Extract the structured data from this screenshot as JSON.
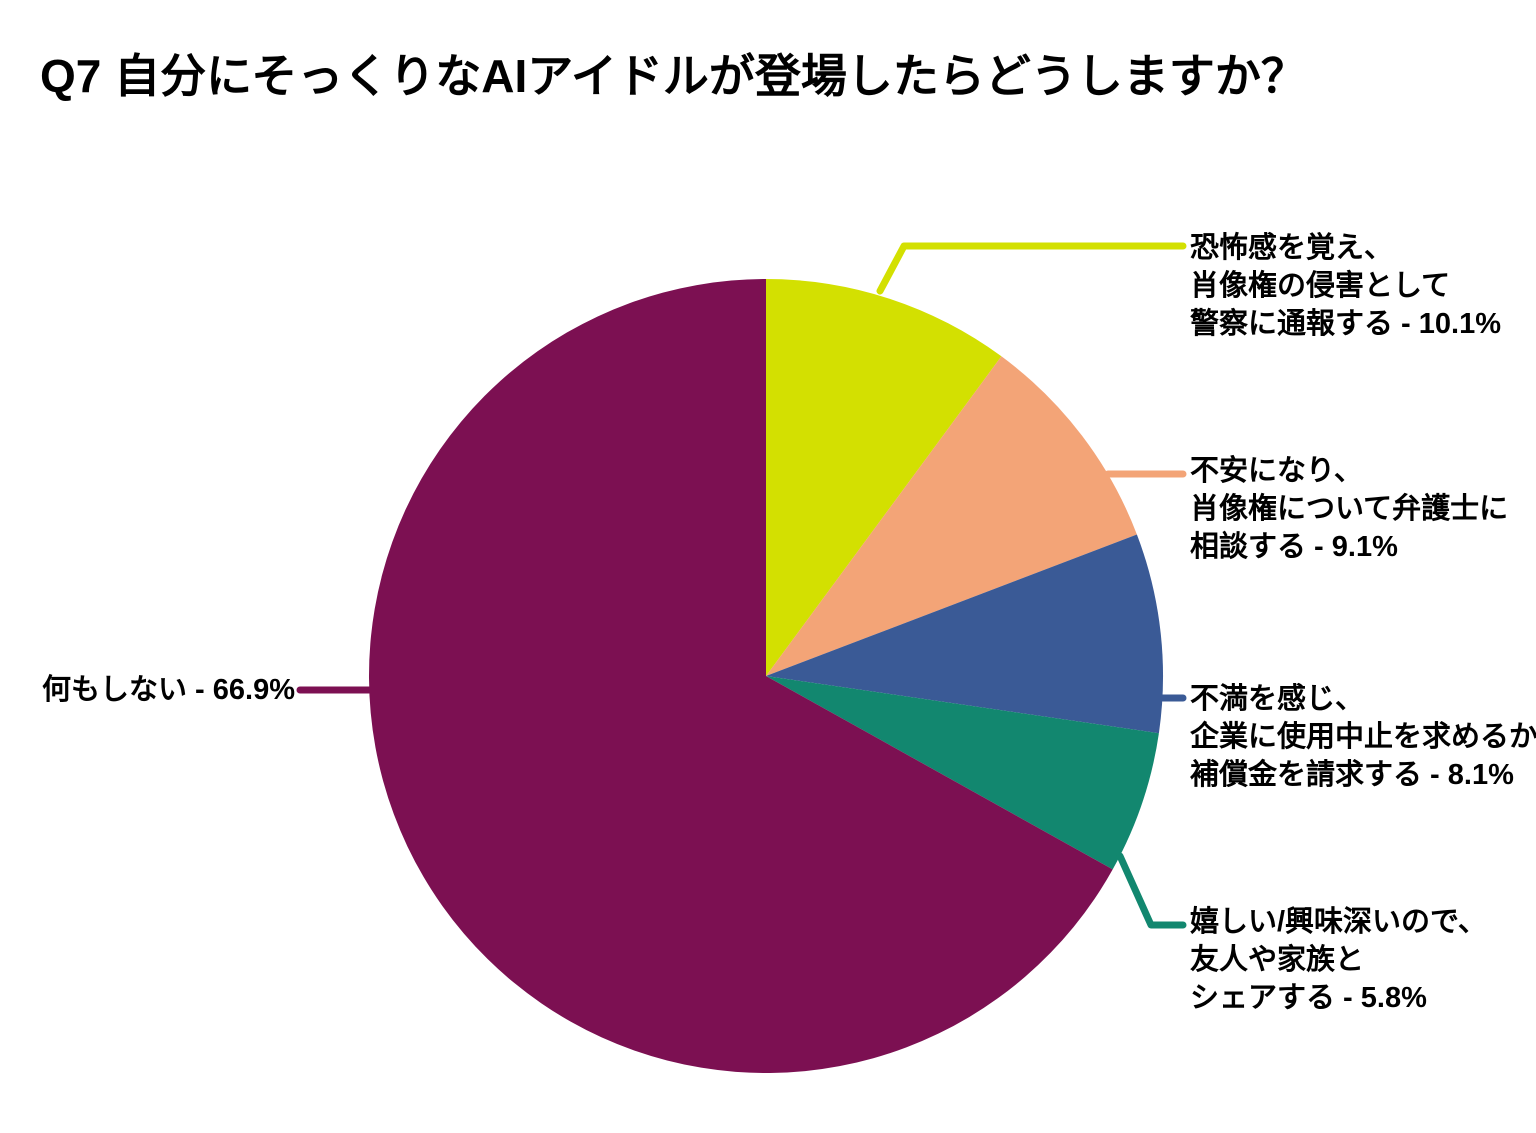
{
  "chart_data": {
    "type": "pie",
    "title": "Q7 自分にそっくりなAIアイドルが登場したらどうしますか？",
    "start_angle": "12-oclock",
    "direction": "clockwise",
    "legend_position": "callout-labels",
    "background_color": "#ffffff",
    "text_color": "#000000",
    "slices": [
      {
        "label": "恐怖感を覚え、肖像権の侵害として警察に通報する",
        "value_pct": 10.1,
        "color": "#d3e001",
        "label_lines": [
          "恐怖感を覚え、",
          "肖像権の侵害として",
          "警察に通報する - 10.1%"
        ]
      },
      {
        "label": "不安になり、肖像権について弁護士に相談する",
        "value_pct": 9.1,
        "color": "#f3a477",
        "label_lines": [
          "不安になり、",
          "肖像権について弁護士に",
          "相談する - 9.1%"
        ]
      },
      {
        "label": "不満を感じ、企業に使用中止を求めるか補償金を請求する",
        "value_pct": 8.1,
        "color": "#3a5a96",
        "label_lines": [
          "不満を感じ、",
          "企業に使用中止を求めるか",
          "補償金を請求する - 8.1%"
        ]
      },
      {
        "label": "嬉しい/興味深いので、友人や家族とシェアする",
        "value_pct": 5.8,
        "color": "#12876f",
        "label_lines": [
          "嬉しい/興味深いので、",
          "友人や家族と",
          "シェアする - 5.8%"
        ]
      },
      {
        "label": "何もしない",
        "value_pct": 66.9,
        "color": "#7c1052",
        "label_lines": [
          "何もしない - 66.9%"
        ]
      }
    ]
  }
}
